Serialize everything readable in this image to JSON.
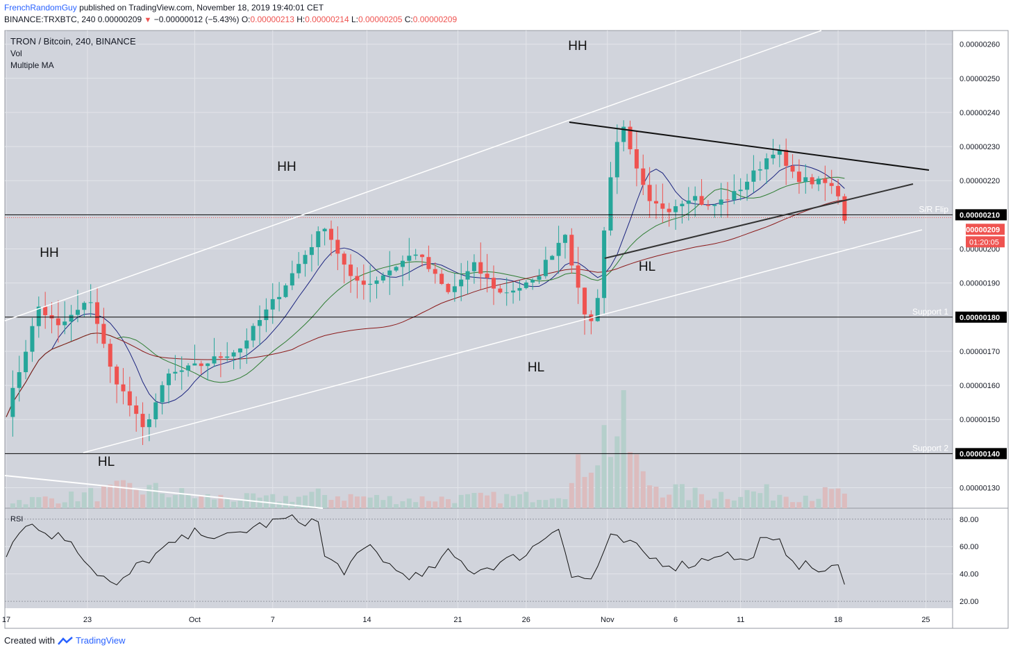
{
  "header": {
    "author": "FrenchRandomGuy",
    "published_text": "published on TradingView.com, November 18, 2019 19:40:01 CET",
    "symbol": "BINANCE:TRXBTC, 240",
    "last": "0.00000209",
    "change": "−0.00000012 (−5.43%)",
    "o_label": "O:",
    "o": "0.00000213",
    "h_label": "H:",
    "h": "0.00000214",
    "l_label": "L:",
    "l": "0.00000205",
    "c_label": "C:",
    "c": "0.00000209"
  },
  "legend": {
    "title": "TRON / Bitcoin, 240, BINANCE",
    "vol": "Vol",
    "ma": "Multiple MA"
  },
  "rsi_label": "RSI",
  "footer": {
    "created_with": "Created with",
    "brand": "TradingView"
  },
  "colors": {
    "background": "#d1d4dc",
    "up": "#26a69a",
    "down": "#ef5350",
    "ma_fast": "#1a237e",
    "ma_mid": "#2e7d32",
    "ma_slow": "#8b1a1a",
    "price_tag": "#ef5350",
    "level_tag": "#000000"
  },
  "chart_data": {
    "type": "candlestick",
    "x_tick_labels": [
      "17",
      "23",
      "Oct",
      "7",
      "14",
      "21",
      "26",
      "Nov",
      "6",
      "11",
      "18",
      "25"
    ],
    "y_tick_labels": [
      "0.00000260",
      "0.00000250",
      "0.00000240",
      "0.00000230",
      "0.00000220",
      "0.00000210",
      "0.00000200",
      "0.00000190",
      "0.00000180",
      "0.00000170",
      "0.00000160",
      "0.00000150",
      "0.00000140",
      "0.00000130"
    ],
    "ylim": [
      1.24e-06,
      2.64e-06
    ],
    "rsi_tick_labels": [
      "80.00",
      "60.00",
      "40.00",
      "20.00"
    ],
    "rsi_ylim": [
      15,
      88
    ],
    "current_price": "0.00000209",
    "countdown": "01:20:05",
    "levels": [
      {
        "name": "S/R Flip",
        "value": 2.1e-06,
        "tag": "0.00000210"
      },
      {
        "name": "Support 1",
        "value": 1.8e-06,
        "tag": "0.00000180"
      },
      {
        "name": "Support 2",
        "value": 1.4e-06,
        "tag": "0.00000140"
      }
    ],
    "annotations": [
      "HH",
      "HH",
      "HH",
      "HL",
      "HL",
      "HL"
    ],
    "price_path": [
      [
        0,
        1.52e-06
      ],
      [
        5,
        1.83e-06
      ],
      [
        8,
        1.77e-06
      ],
      [
        13,
        1.85e-06
      ],
      [
        16,
        1.65e-06
      ],
      [
        21,
        1.47e-06
      ],
      [
        25,
        1.63e-06
      ],
      [
        30,
        1.66e-06
      ],
      [
        36,
        1.71e-06
      ],
      [
        42,
        1.87e-06
      ],
      [
        49,
        2.07e-06
      ],
      [
        53,
        1.91e-06
      ],
      [
        56,
        1.9e-06
      ],
      [
        63,
        1.99e-06
      ],
      [
        68,
        1.87e-06
      ],
      [
        72,
        1.95e-06
      ],
      [
        76,
        1.87e-06
      ],
      [
        81,
        1.9e-06
      ],
      [
        86,
        2.05e-06
      ],
      [
        88.5,
        1.83e-06
      ],
      [
        90.5,
        1.77e-06
      ],
      [
        92.5,
        2.15e-06
      ],
      [
        94.5,
        2.38e-06
      ],
      [
        96.5,
        2.25e-06
      ],
      [
        99,
        2.13e-06
      ],
      [
        102,
        2.12e-06
      ],
      [
        105.5,
        2.16e-06
      ],
      [
        108,
        2.12e-06
      ],
      [
        112,
        2.16e-06
      ],
      [
        115,
        2.22e-06
      ],
      [
        118.5,
        2.3e-06
      ],
      [
        120.5,
        2.22e-06
      ],
      [
        123,
        2.2e-06
      ],
      [
        126.5,
        2.19e-06
      ],
      [
        128,
        2.16e-06
      ],
      [
        129,
        2.09e-06
      ]
    ],
    "volume_path": [
      [
        0,
        6
      ],
      [
        10,
        10
      ],
      [
        20,
        18
      ],
      [
        30,
        10
      ],
      [
        40,
        8
      ],
      [
        49,
        12
      ],
      [
        60,
        8
      ],
      [
        70,
        9
      ],
      [
        80,
        10
      ],
      [
        87,
        20
      ],
      [
        90,
        55
      ],
      [
        93,
        65
      ],
      [
        95,
        70
      ],
      [
        98,
        25
      ],
      [
        105,
        12
      ],
      [
        115,
        14
      ],
      [
        125,
        12
      ],
      [
        129,
        14
      ]
    ],
    "rsi_path": [
      [
        0,
        56
      ],
      [
        3,
        78
      ],
      [
        6,
        70
      ],
      [
        10,
        65
      ],
      [
        13,
        45
      ],
      [
        17,
        30
      ],
      [
        20,
        45
      ],
      [
        25,
        60
      ],
      [
        30,
        72
      ],
      [
        33,
        65
      ],
      [
        38,
        74
      ],
      [
        43,
        80
      ],
      [
        48,
        78
      ],
      [
        49,
        52
      ],
      [
        52,
        43
      ],
      [
        56,
        60
      ],
      [
        60,
        42
      ],
      [
        64,
        37
      ],
      [
        68,
        55
      ],
      [
        72,
        42
      ],
      [
        76,
        48
      ],
      [
        80,
        55
      ],
      [
        85,
        76
      ],
      [
        87,
        38
      ],
      [
        90,
        36
      ],
      [
        93,
        66
      ],
      [
        96,
        62
      ],
      [
        99,
        52
      ],
      [
        103,
        46
      ],
      [
        106,
        48
      ],
      [
        110,
        56
      ],
      [
        114,
        48
      ],
      [
        116,
        64
      ],
      [
        119,
        62
      ],
      [
        122,
        47
      ],
      [
        126,
        42
      ],
      [
        128,
        45
      ],
      [
        129,
        30
      ]
    ]
  }
}
